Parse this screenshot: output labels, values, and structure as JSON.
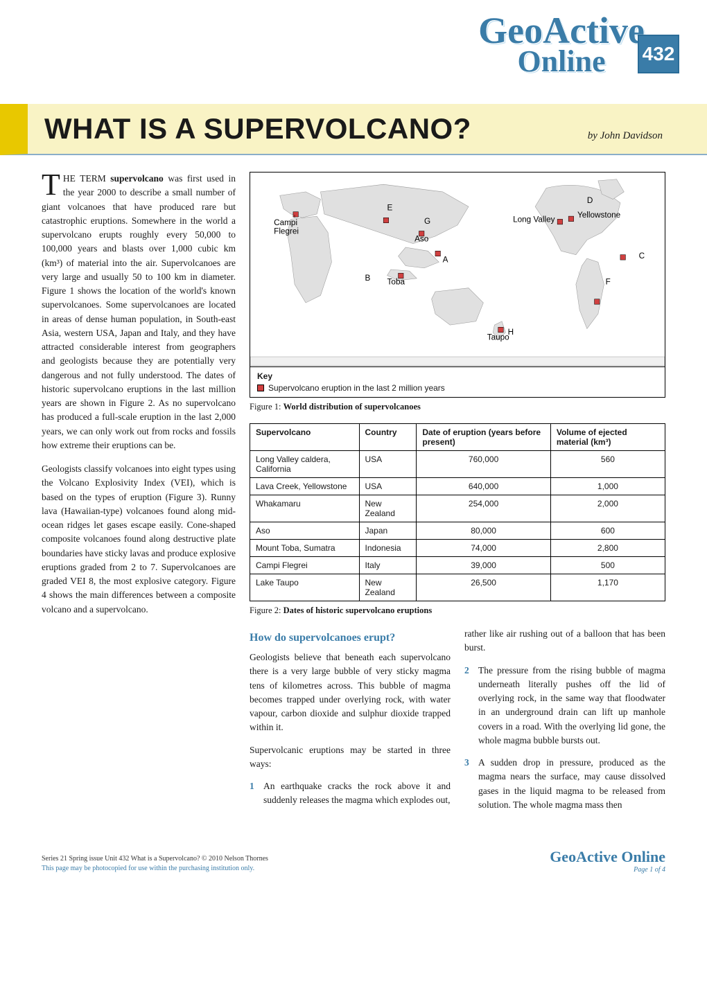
{
  "header": {
    "logo_top": "GeoActive",
    "logo_bottom": "Online",
    "issue_number": "432"
  },
  "title_bar": {
    "title": "WHAT IS A SUPERVOLCANO?",
    "author": "by John Davidson"
  },
  "intro": {
    "dropcap": "T",
    "first_line": "HE TERM ",
    "bold_term": "supervolcano",
    "para1_rest": " was first used in the year 2000 to describe a small number of giant volcanoes that have produced rare but catastrophic eruptions. Somewhere in the world a supervolcano erupts roughly every 50,000 to 100,000 years and blasts over 1,000 cubic km (km³) of material into the air. Supervolcanoes are very large and usually 50 to 100 km in diameter. Figure 1 shows the location of the world's known supervolcanoes. Some supervolcanoes are located in areas of dense human population, in South-east Asia, western USA, Japan and Italy, and they have attracted considerable interest from geographers and geologists because they are potentially very dangerous and not fully understood. The dates of historic supervolcano eruptions in the last million years are shown in Figure 2. As no supervolcano has produced a full-scale eruption in the last 2,000 years, we can only work out from rocks and fossils how extreme their eruptions can be.",
    "para2": "Geologists classify volcanoes into eight types using the Volcano Explosivity Index (VEI), which is based on the types of eruption (Figure 3). Runny lava (Hawaiian-type) volcanoes found along mid-ocean ridges let gases escape easily. Cone-shaped composite volcanoes found along destructive plate boundaries have sticky lavas and produce explosive eruptions graded from 2 to 7. Supervolcanoes are graded VEI 8, the most explosive category. Figure 4 shows the main differences between a composite volcano and a supervolcano."
  },
  "map": {
    "labels": {
      "campi_flegrei": "Campi Flegrei",
      "aso": "Aso",
      "long_valley": "Long Valley",
      "yellowstone": "Yellowstone",
      "toba": "Toba",
      "taupo": "Taupo"
    },
    "letters": [
      "A",
      "B",
      "C",
      "D",
      "E",
      "F",
      "G",
      "H"
    ],
    "key_title": "Key",
    "key_item": "Supervolcano eruption in the last 2 million years",
    "land_color": "#e0e0e0",
    "sea_color": "#ffffff",
    "marker_color": "#d04040",
    "border_color": "#000000",
    "caption_label": "Figure 1: ",
    "caption_title": "World distribution of supervolcanoes"
  },
  "table": {
    "headers": [
      "Supervolcano",
      "Country",
      "Date of eruption (years before present)",
      "Volume of ejected material (km³)"
    ],
    "rows": [
      [
        "Long Valley caldera, California",
        "USA",
        "760,000",
        "560"
      ],
      [
        "Lava Creek, Yellowstone",
        "USA",
        "640,000",
        "1,000"
      ],
      [
        "Whakamaru",
        "New Zealand",
        "254,000",
        "2,000"
      ],
      [
        "Aso",
        "Japan",
        "80,000",
        "600"
      ],
      [
        "Mount Toba, Sumatra",
        "Indonesia",
        "74,000",
        "2,800"
      ],
      [
        "Campi Flegrei",
        "Italy",
        "39,000",
        "500"
      ],
      [
        "Lake Taupo",
        "New Zealand",
        "26,500",
        "1,170"
      ]
    ],
    "caption_label": "Figure 2: ",
    "caption_title": "Dates of historic supervolcano eruptions"
  },
  "section": {
    "heading": "How do supervolcanoes erupt?",
    "para1": "Geologists believe that beneath each supervolcano there is a very large bubble of very sticky magma tens of kilometres across. This bubble of magma becomes trapped under overlying rock, with water vapour, carbon dioxide and sulphur dioxide trapped within it.",
    "para2": "Supervolcanic eruptions may be started in three ways:",
    "list": [
      {
        "n": "1",
        "text": "An earthquake cracks the rock above it and suddenly releases the magma which explodes out,",
        "cont": "rather like air rushing out of a balloon that has been burst."
      },
      {
        "n": "2",
        "text": "The pressure from the rising bubble of magma underneath literally pushes off the lid of overlying rock, in the same way that floodwater in an underground drain can lift up manhole covers in a road. With the overlying lid gone, the whole magma bubble bursts out."
      },
      {
        "n": "3",
        "text": "A sudden drop in pressure, produced as the magma nears the surface, may cause dissolved gases in the liquid magma to be released from solution. The whole magma mass then"
      }
    ]
  },
  "footer": {
    "line1": "Series 21 Spring issue Unit 432 What is a Supervolcano? © 2010 Nelson Thornes",
    "line2": "This page may be photocopied for use within the purchasing institution only.",
    "logo": "GeoActive Online",
    "page": "Page 1 of 4"
  },
  "colors": {
    "accent_blue": "#3a7ca8",
    "title_bg": "#f9f3c5",
    "title_bar_yellow": "#e8c800",
    "border_blue": "#8aaec8",
    "text": "#1a1a1a"
  }
}
